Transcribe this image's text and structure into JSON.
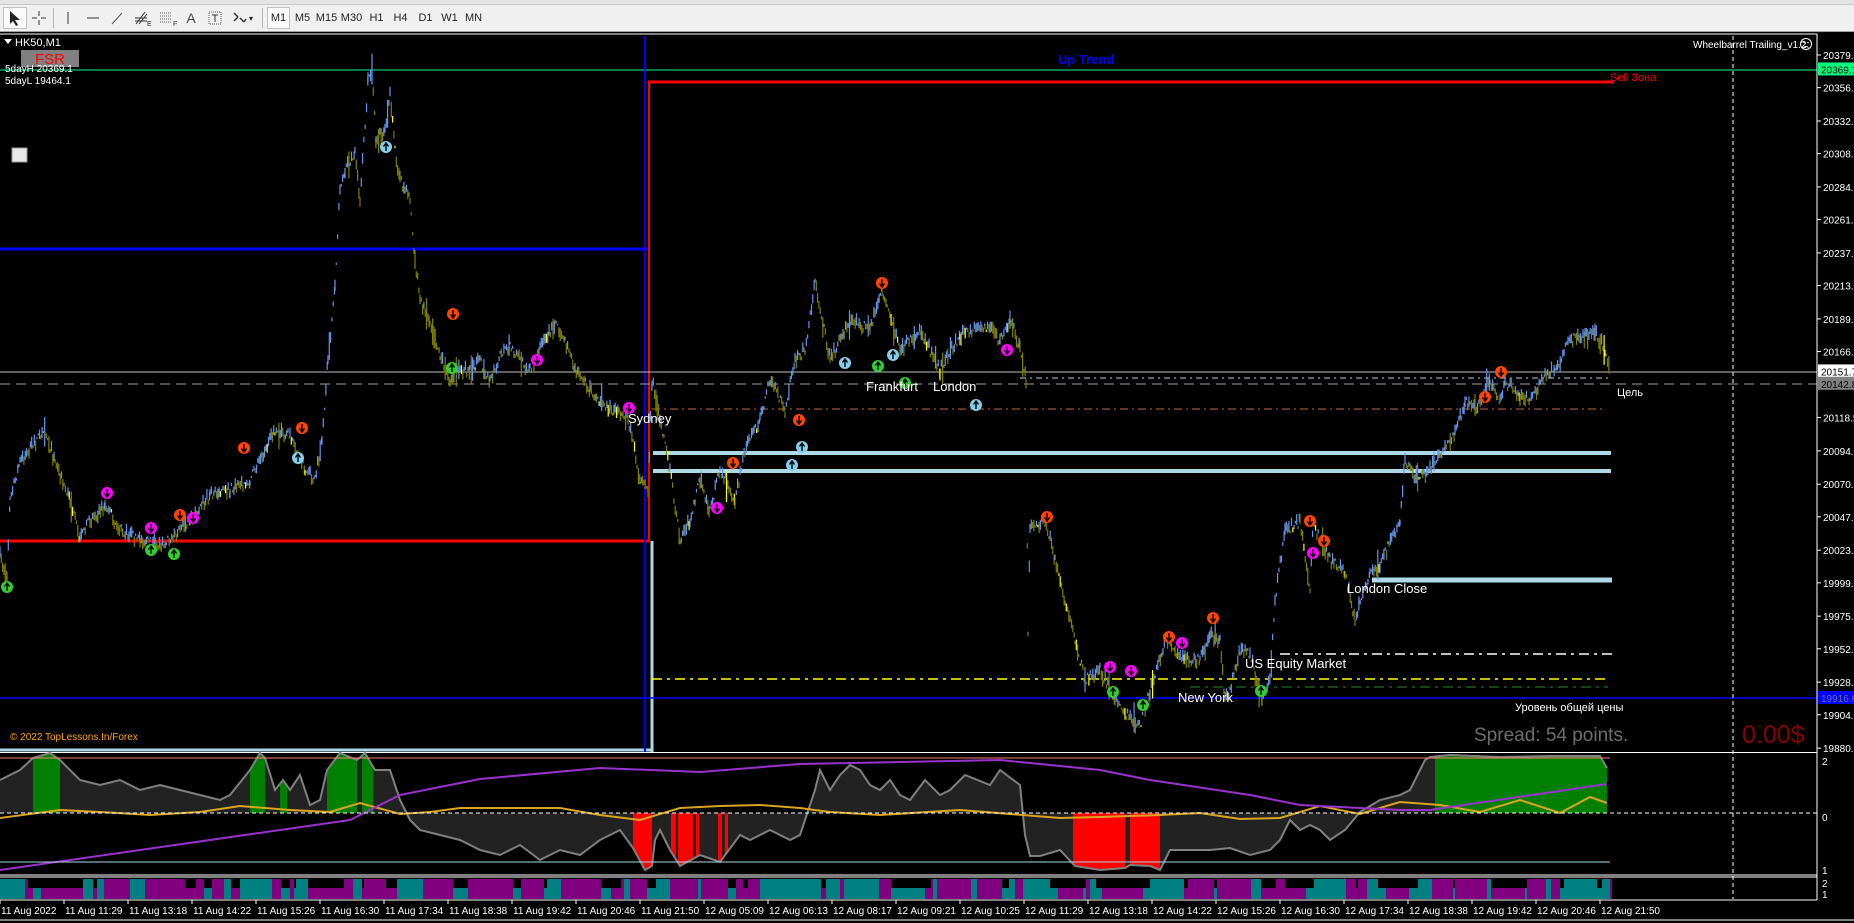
{
  "toolbar": {
    "tools": [
      {
        "name": "cursor-tool",
        "glyph": ""
      },
      {
        "name": "crosshair-tool",
        "glyph": ""
      },
      {
        "name": "vertical-line-tool",
        "glyph": ""
      },
      {
        "name": "horizontal-line-tool",
        "glyph": ""
      },
      {
        "name": "trendline-tool",
        "glyph": ""
      },
      {
        "name": "fibo-fan-tool",
        "glyph": "E"
      },
      {
        "name": "fibo-retracement-tool",
        "glyph": "F"
      },
      {
        "name": "text-tool",
        "glyph": "A"
      },
      {
        "name": "text-label-tool",
        "glyph": "T"
      },
      {
        "name": "arrows-tool",
        "glyph": "▾"
      }
    ],
    "timeframes": [
      "M1",
      "M5",
      "M15",
      "M30",
      "H1",
      "H4",
      "D1",
      "W1",
      "MN"
    ],
    "selected_timeframe": "M1"
  },
  "chart": {
    "symbol": "HK50,M1",
    "fsr_label": "FSR",
    "five_day_high": "5dayH 20369.1",
    "five_day_low": "5dayL 19464.1",
    "trend_label": "Up Trend",
    "sell_zone_label": "Sell Зона",
    "expert_label": "Wheelbarrel Trailing_v1.2",
    "expert_icon": "frown-face-icon",
    "target_label": "Цель",
    "common_price_label": "Уровень общей цены",
    "spread_label": "Spread: 54 points.",
    "profit_label": "0.00$",
    "copyright": "© 2022 TopLessons.In/Forex",
    "sessions": {
      "sydney": "Sydney",
      "frankfurt": "Frankfurt",
      "london": "London",
      "london_close": "London Close",
      "us_equity": "US Equity Market",
      "new_york": "New York"
    },
    "colors": {
      "background": "#000000",
      "bull_bar": "#6495ed",
      "bear_bar": "#808000",
      "five_day_high_line": "#00ff7f",
      "trend_text": "#0000ff",
      "sell_zone": "#ff0000",
      "level_lines": "#add8e6",
      "profit": "#8b0000"
    }
  },
  "price_axis": {
    "ticks": [
      "20379.5",
      "20356.0",
      "20332.0",
      "20308.5",
      "20284.5",
      "20261.0",
      "20237.0",
      "20213.5",
      "20189.5",
      "20166.0",
      "20118.5",
      "20094.5",
      "20070.5",
      "20047.0",
      "20023.0",
      "19999.5",
      "19975.5",
      "19952.0",
      "19928.0",
      "19904.5",
      "19880.5"
    ],
    "five_day_high_price": "20369.1",
    "bid_price": "20151.7",
    "target_price": "20142.8",
    "common_price": "19916.6"
  },
  "indicator1_axis": [
    "2",
    "0",
    "1"
  ],
  "indicator2_axis": [
    "2",
    "1"
  ],
  "time_axis": [
    "11 Aug 2022",
    "11 Aug 11:29",
    "11 Aug 13:18",
    "11 Aug 14:22",
    "11 Aug 15:26",
    "11 Aug 16:30",
    "11 Aug 17:34",
    "11 Aug 18:38",
    "11 Aug 19:42",
    "11 Aug 20:46",
    "11 Aug 21:50",
    "12 Aug 05:09",
    "12 Aug 06:13",
    "12 Aug 08:17",
    "12 Aug 09:21",
    "12 Aug 10:25",
    "12 Aug 11:29",
    "12 Aug 13:18",
    "12 Aug 14:22",
    "12 Aug 15:26",
    "12 Aug 16:30",
    "12 Aug 17:34",
    "12 Aug 18:38",
    "12 Aug 19:42",
    "12 Aug 20:46",
    "12 Aug 21:50"
  ]
}
